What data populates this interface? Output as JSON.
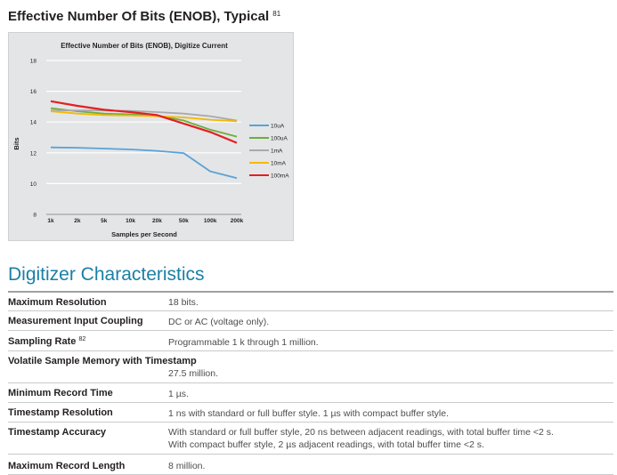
{
  "section": {
    "title": "Effective Number Of Bits (ENOB), Typical",
    "footnote": "81"
  },
  "chart_data": {
    "type": "line",
    "title": "Effective Number of Bits (ENOB), Digitize Current",
    "xlabel": "Samples per Second",
    "ylabel": "Bits",
    "categories": [
      "1k",
      "2k",
      "5k",
      "10k",
      "20k",
      "50k",
      "100k",
      "200k"
    ],
    "ylim": [
      8,
      18
    ],
    "yticks": [
      "8",
      "10",
      "12",
      "14",
      "16",
      "18"
    ],
    "grid": true,
    "legend_position": "right",
    "series": [
      {
        "name": "10uA",
        "color": "#5aa2d6",
        "values": [
          12.35,
          12.33,
          12.28,
          12.22,
          12.13,
          11.98,
          10.8,
          10.35
        ]
      },
      {
        "name": "100uA",
        "color": "#6cae3c",
        "values": [
          14.9,
          14.7,
          14.55,
          14.5,
          14.42,
          14.1,
          13.5,
          13.05
        ]
      },
      {
        "name": "1mA",
        "color": "#a7a9ac",
        "values": [
          14.75,
          14.75,
          14.75,
          14.72,
          14.65,
          14.55,
          14.38,
          14.1
        ]
      },
      {
        "name": "10mA",
        "color": "#f5b800",
        "values": [
          14.7,
          14.55,
          14.45,
          14.42,
          14.38,
          14.3,
          14.15,
          14.05
        ]
      },
      {
        "name": "100mA",
        "color": "#e41f22",
        "values": [
          15.35,
          15.05,
          14.8,
          14.65,
          14.45,
          13.9,
          13.35,
          12.65
        ]
      }
    ]
  },
  "characteristics": {
    "title": "Digitizer Characteristics",
    "rows": [
      {
        "label": "Maximum Resolution",
        "note": "",
        "value": "18 bits.",
        "value2": ""
      },
      {
        "label": "Measurement Input Coupling",
        "note": "",
        "value": "DC or AC (voltage only).",
        "value2": ""
      },
      {
        "label": "Sampling Rate",
        "note": "82",
        "value": "Programmable 1 k through 1 million.",
        "value2": ""
      },
      {
        "label": "Volatile Sample Memory with Timestamp",
        "note": "",
        "value": "27.5 million.",
        "value2": ""
      },
      {
        "label": "Minimum Record Time",
        "note": "",
        "value": "1 µs.",
        "value2": ""
      },
      {
        "label": "Timestamp Resolution",
        "note": "",
        "value": "1 ns with standard or full buffer style. 1 µs with compact buffer style.",
        "value2": ""
      },
      {
        "label": "Timestamp Accuracy",
        "note": "",
        "value": "With standard or full buffer style, 20 ns between adjacent readings, with total buffer time <2 s.",
        "value2": "With compact buffer style, 2 µs adjacent readings, with total buffer time <2 s."
      },
      {
        "label": "Maximum Record Length",
        "note": "",
        "value": "8 million.",
        "value2": ""
      }
    ]
  }
}
